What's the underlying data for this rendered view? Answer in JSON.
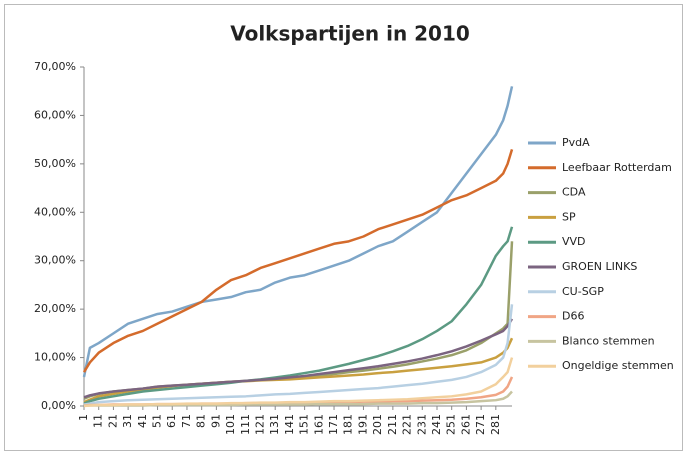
{
  "chart_data": {
    "type": "line",
    "title": "Volkspartijen in 2010",
    "x": [
      1,
      5,
      11,
      21,
      31,
      41,
      51,
      61,
      71,
      81,
      91,
      101,
      111,
      121,
      131,
      141,
      151,
      161,
      171,
      181,
      191,
      201,
      211,
      221,
      231,
      241,
      251,
      261,
      271,
      281,
      286,
      289,
      292
    ],
    "xlim": [
      1,
      292
    ],
    "xticks": [
      1,
      11,
      21,
      31,
      41,
      51,
      61,
      71,
      81,
      91,
      101,
      111,
      121,
      131,
      141,
      151,
      161,
      171,
      181,
      191,
      201,
      211,
      221,
      231,
      241,
      251,
      261,
      271,
      281
    ],
    "ylim": [
      0,
      70
    ],
    "yticks": [
      {
        "value": 0,
        "label": "0,00%"
      },
      {
        "value": 10,
        "label": "10,00%"
      },
      {
        "value": 20,
        "label": "20,00%"
      },
      {
        "value": 30,
        "label": "30,00%"
      },
      {
        "value": 40,
        "label": "40,00%"
      },
      {
        "value": 50,
        "label": "50,00%"
      },
      {
        "value": 60,
        "label": "60,00%"
      },
      {
        "value": 70,
        "label": "70,00%"
      }
    ],
    "grid": false,
    "legend": "right",
    "series": [
      {
        "name": "PvdA",
        "color": "#7ea6c8",
        "values": [
          6,
          12,
          13,
          15,
          17,
          18,
          19,
          19.5,
          20.5,
          21.5,
          22,
          22.5,
          23.5,
          24,
          25.5,
          26.5,
          27,
          28,
          29,
          30,
          31.5,
          33,
          34,
          36,
          38,
          40,
          44,
          48,
          52,
          56,
          59,
          62,
          66
        ]
      },
      {
        "name": "Leefbaar Rotterdam",
        "color": "#d46b2c",
        "values": [
          7,
          9,
          11,
          13,
          14.5,
          15.5,
          17,
          18.5,
          20,
          21.5,
          24,
          26,
          27,
          28.5,
          29.5,
          30.5,
          31.5,
          32.5,
          33.5,
          34,
          35,
          36.5,
          37.5,
          38.5,
          39.5,
          41,
          42.5,
          43.5,
          45,
          46.5,
          48,
          50,
          53
        ]
      },
      {
        "name": "CDA",
        "color": "#9aa06a",
        "values": [
          1.5,
          2,
          2.5,
          3,
          3.3,
          3.6,
          4,
          4.2,
          4.4,
          4.6,
          4.8,
          5,
          5.2,
          5.4,
          5.6,
          5.8,
          6,
          6.3,
          6.6,
          7,
          7.3,
          7.7,
          8.1,
          8.6,
          9.2,
          9.8,
          10.5,
          11.5,
          13,
          15,
          16,
          17,
          34
        ]
      },
      {
        "name": "SP",
        "color": "#c9a040",
        "values": [
          0.8,
          1.3,
          2,
          2.5,
          3,
          3.4,
          3.8,
          4.1,
          4.4,
          4.6,
          4.8,
          5,
          5.1,
          5.3,
          5.4,
          5.5,
          5.7,
          5.9,
          6.1,
          6.3,
          6.5,
          6.8,
          7,
          7.3,
          7.6,
          7.9,
          8.2,
          8.6,
          9,
          10,
          11,
          12,
          14
        ]
      },
      {
        "name": "VVD",
        "color": "#5c9a83",
        "values": [
          0.5,
          1,
          1.5,
          2,
          2.5,
          3,
          3.3,
          3.6,
          3.9,
          4.2,
          4.5,
          4.8,
          5.2,
          5.5,
          5.9,
          6.3,
          6.8,
          7.3,
          8,
          8.7,
          9.5,
          10.3,
          11.3,
          12.4,
          13.8,
          15.5,
          17.5,
          21,
          25,
          31,
          33,
          34,
          37
        ]
      },
      {
        "name": "GROEN LINKS",
        "color": "#7b6480",
        "values": [
          1.8,
          2.2,
          2.6,
          3,
          3.3,
          3.6,
          4,
          4.2,
          4.4,
          4.6,
          4.8,
          5,
          5.2,
          5.4,
          5.6,
          5.9,
          6.2,
          6.6,
          7,
          7.4,
          7.8,
          8.2,
          8.7,
          9.2,
          9.8,
          10.5,
          11.3,
          12.3,
          13.5,
          14.8,
          15.5,
          16.5,
          18
        ]
      },
      {
        "name": "CU-SGP",
        "color": "#b8d0e3",
        "values": [
          0.3,
          0.5,
          0.8,
          1,
          1.2,
          1.3,
          1.4,
          1.5,
          1.6,
          1.7,
          1.8,
          1.9,
          2,
          2.2,
          2.4,
          2.5,
          2.7,
          2.9,
          3.1,
          3.3,
          3.5,
          3.7,
          4,
          4.3,
          4.6,
          5,
          5.4,
          6,
          7,
          8.5,
          10,
          13,
          21
        ]
      },
      {
        "name": "D66",
        "color": "#f0a585",
        "values": [
          0.1,
          0.2,
          0.2,
          0.3,
          0.3,
          0.3,
          0.4,
          0.4,
          0.4,
          0.5,
          0.5,
          0.5,
          0.6,
          0.6,
          0.6,
          0.7,
          0.7,
          0.7,
          0.8,
          0.8,
          0.9,
          0.9,
          1,
          1,
          1.1,
          1.2,
          1.3,
          1.5,
          1.8,
          2.3,
          3,
          4,
          6
        ]
      },
      {
        "name": "Blanco stemmen",
        "color": "#c7c4a0",
        "values": [
          0.05,
          0.1,
          0.1,
          0.1,
          0.1,
          0.1,
          0.2,
          0.2,
          0.2,
          0.2,
          0.2,
          0.2,
          0.3,
          0.3,
          0.3,
          0.3,
          0.3,
          0.4,
          0.4,
          0.4,
          0.4,
          0.5,
          0.5,
          0.5,
          0.6,
          0.6,
          0.7,
          0.8,
          1,
          1.2,
          1.5,
          2,
          3
        ]
      },
      {
        "name": "Ongeldige stemmen",
        "color": "#f2d09d",
        "values": [
          0,
          0.1,
          0.2,
          0.2,
          0.3,
          0.3,
          0.4,
          0.4,
          0.5,
          0.5,
          0.5,
          0.6,
          0.6,
          0.7,
          0.7,
          0.8,
          0.8,
          0.9,
          1,
          1,
          1.1,
          1.2,
          1.3,
          1.4,
          1.6,
          1.8,
          2,
          2.4,
          3,
          4.5,
          6,
          7,
          10
        ]
      }
    ]
  }
}
